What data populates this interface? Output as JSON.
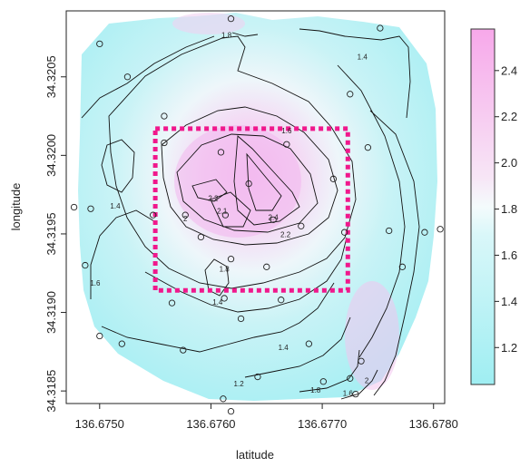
{
  "chart_data": {
    "type": "heatmap",
    "xlabel": "latitude",
    "ylabel": "longitude",
    "xlim": [
      136.6747,
      136.6781
    ],
    "ylim": [
      34.31842,
      34.32092
    ],
    "x_ticks": [
      "136.6750",
      "136.6760",
      "136.6770",
      "136.6780"
    ],
    "x_tick_values": [
      136.675,
      136.676,
      136.677,
      136.678
    ],
    "y_ticks": [
      "34.3185",
      "34.3190",
      "34.3195",
      "34.3200",
      "34.3205"
    ],
    "y_tick_values": [
      34.3185,
      34.319,
      34.3195,
      34.32,
      34.3205
    ],
    "colorbar": {
      "range": [
        1.04,
        2.58
      ],
      "ticks": [
        "1.2",
        "1.4",
        "1.6",
        "1.8",
        "2.0",
        "2.2",
        "2.4"
      ],
      "tick_values": [
        1.2,
        1.4,
        1.6,
        1.8,
        2.0,
        2.2,
        2.4
      ],
      "low_color": "#9feef2",
      "mid_color": "#eaf9fb",
      "high_color": "#f7a8ea"
    },
    "contour_labels": [
      {
        "text": "1.8",
        "x": 136.67614,
        "y": 34.32075
      },
      {
        "text": "1.4",
        "x": 136.67736,
        "y": 34.32061
      },
      {
        "text": "1.6",
        "x": 136.67668,
        "y": 34.32014
      },
      {
        "text": "1.4",
        "x": 136.67514,
        "y": 34.31966
      },
      {
        "text": "2.2",
        "x": 136.67602,
        "y": 34.31971
      },
      {
        "text": "2",
        "x": 136.67577,
        "y": 34.31958
      },
      {
        "text": "2.1",
        "x": 136.6761,
        "y": 34.31963
      },
      {
        "text": "2.4",
        "x": 136.67656,
        "y": 34.31959
      },
      {
        "text": "2.2",
        "x": 136.67667,
        "y": 34.31948
      },
      {
        "text": "1.8",
        "x": 136.67612,
        "y": 34.31926
      },
      {
        "text": "1.6",
        "x": 136.67496,
        "y": 34.31917
      },
      {
        "text": "1.4",
        "x": 136.67606,
        "y": 34.31905
      },
      {
        "text": "1.4",
        "x": 136.67665,
        "y": 34.31876
      },
      {
        "text": "1.2",
        "x": 136.67625,
        "y": 34.31853
      },
      {
        "text": "1.8",
        "x": 136.67694,
        "y": 34.31849
      },
      {
        "text": "1.6",
        "x": 136.67723,
        "y": 34.31847
      },
      {
        "text": "2",
        "x": 136.6774,
        "y": 34.31855
      }
    ],
    "sample_points": [
      [
        136.67618,
        34.32087
      ],
      [
        136.675,
        34.32071
      ],
      [
        136.67752,
        34.32081
      ],
      [
        136.67525,
        34.3205
      ],
      [
        136.67558,
        34.32025
      ],
      [
        136.67725,
        34.32039
      ],
      [
        136.67609,
        34.32002
      ],
      [
        136.67668,
        34.32007
      ],
      [
        136.67558,
        34.32008
      ],
      [
        136.67634,
        34.31982
      ],
      [
        136.6771,
        34.31985
      ],
      [
        136.67741,
        34.32005
      ],
      [
        136.67477,
        34.31967
      ],
      [
        136.67492,
        34.31966
      ],
      [
        136.67548,
        34.31962
      ],
      [
        136.67577,
        34.31962
      ],
      [
        136.67613,
        34.31962
      ],
      [
        136.67656,
        34.31959
      ],
      [
        136.67681,
        34.31955
      ],
      [
        136.67591,
        34.31948
      ],
      [
        136.67618,
        34.31934
      ],
      [
        136.6765,
        34.31929
      ],
      [
        136.6772,
        34.31951
      ],
      [
        136.6776,
        34.31952
      ],
      [
        136.67792,
        34.31951
      ],
      [
        136.67806,
        34.31953
      ],
      [
        136.67772,
        34.31929
      ],
      [
        136.67487,
        34.3193
      ],
      [
        136.675,
        34.31885
      ],
      [
        136.67565,
        34.31906
      ],
      [
        136.67612,
        34.31909
      ],
      [
        136.67627,
        34.31896
      ],
      [
        136.67575,
        34.31876
      ],
      [
        136.6752,
        34.3188
      ],
      [
        136.67663,
        34.31908
      ],
      [
        136.67688,
        34.3188
      ],
      [
        136.67735,
        34.31869
      ],
      [
        136.67642,
        34.31859
      ],
      [
        136.67701,
        34.31856
      ],
      [
        136.67725,
        34.31858
      ],
      [
        136.67611,
        34.31845
      ],
      [
        136.6773,
        34.31848
      ],
      [
        136.67618,
        34.31837
      ]
    ],
    "highlight_box": {
      "x": [
        136.6755,
        136.67723
      ],
      "y": [
        34.31914,
        34.32017
      ],
      "color": "#f0188c",
      "style": "dashed"
    }
  }
}
